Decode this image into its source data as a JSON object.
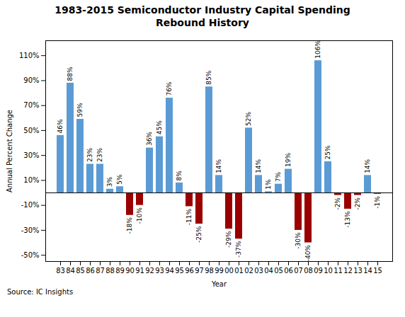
{
  "chart_data": {
    "type": "bar",
    "title": "1983-2015 Semiconductor Industry Capital Spending\nRebound History",
    "xlabel": "Year",
    "ylabel": "Annual Percent Change",
    "source": "Source: IC Insights",
    "categories": [
      "83",
      "84",
      "85",
      "86",
      "87",
      "88",
      "89",
      "90",
      "91",
      "92",
      "93",
      "94",
      "95",
      "96",
      "97",
      "98",
      "99",
      "00",
      "01",
      "02",
      "03",
      "04",
      "05",
      "06",
      "07",
      "08",
      "09",
      "10",
      "11",
      "12",
      "13",
      "14",
      "15"
    ],
    "values": [
      46,
      88,
      59,
      23,
      23,
      3,
      5,
      -18,
      -10,
      36,
      45,
      76,
      8,
      -11,
      -25,
      85,
      14,
      -29,
      -37,
      52,
      14,
      1,
      7,
      19,
      -30,
      -40,
      106,
      25,
      -2,
      -13,
      -2,
      14,
      -1
    ],
    "value_labels": [
      "46%",
      "88%",
      "59%",
      "23%",
      "23%",
      "3%",
      "5%",
      "-18%",
      "-10%",
      "36%",
      "45%",
      "76%",
      "8%",
      "-11%",
      "-25%",
      "85%",
      "14%",
      "-29%",
      "-37%",
      "52%",
      "14%",
      "1%",
      "7%",
      "19%",
      "-30%",
      "-40%",
      "106%",
      "25%",
      "-2%",
      "-13%",
      "-2%",
      "14%",
      "-1%"
    ],
    "colors": [
      "#5B9BD5",
      "#5B9BD5",
      "#5B9BD5",
      "#5B9BD5",
      "#5B9BD5",
      "#5B9BD5",
      "#5B9BD5",
      "#9B0000",
      "#9B0000",
      "#5B9BD5",
      "#5B9BD5",
      "#5B9BD5",
      "#5B9BD5",
      "#9B0000",
      "#9B0000",
      "#5B9BD5",
      "#5B9BD5",
      "#9B0000",
      "#9B0000",
      "#5B9BD5",
      "#5B9BD5",
      "#5B9BD5",
      "#5B9BD5",
      "#5B9BD5",
      "#9B0000",
      "#9B0000",
      "#5B9BD5",
      "#5B9BD5",
      "#9B0000",
      "#9B0000",
      "#9B0000",
      "#5B9BD5",
      "#9B0000"
    ],
    "data_labels": true,
    "grid": false,
    "ylim": [
      -55,
      122
    ],
    "yticks": [
      {
        "value": -50,
        "label": "-50%"
      },
      {
        "value": -30,
        "label": "-30%"
      },
      {
        "value": -10,
        "label": "-10%"
      },
      {
        "value": 10,
        "label": "10%"
      },
      {
        "value": 30,
        "label": "30%"
      },
      {
        "value": 50,
        "label": "50%"
      },
      {
        "value": 70,
        "label": "70%"
      },
      {
        "value": 90,
        "label": "90%"
      },
      {
        "value": 110,
        "label": "110%"
      }
    ]
  }
}
